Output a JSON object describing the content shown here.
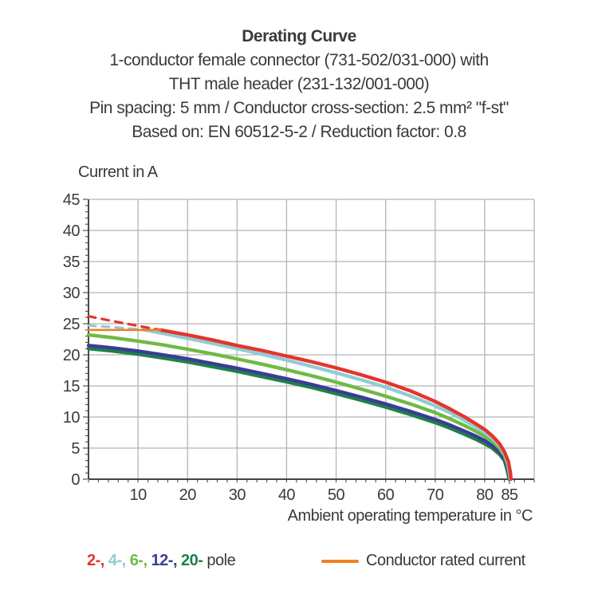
{
  "header": {
    "title": "Derating Curve",
    "subtitle_lines": [
      "1-conductor female connector (731-502/031-000) with",
      "THT male header (231-132/001-000)",
      "Pin spacing: 5 mm / Conductor cross-section: 2.5 mm² \"f-st\"",
      "Based on: EN 60512-5-2 / Reduction factor: 0.8"
    ]
  },
  "chart_data": {
    "type": "line",
    "title": "Derating Curve",
    "ylabel": "Current in A",
    "xlabel": "Ambient operating temperature in °C",
    "xlim": [
      0,
      90
    ],
    "ylim": [
      0,
      45
    ],
    "x_ticks_labeled": [
      10,
      20,
      30,
      40,
      50,
      60,
      70,
      80,
      85
    ],
    "y_ticks_labeled": [
      0,
      5,
      10,
      15,
      20,
      25,
      30,
      35,
      40,
      45
    ],
    "x_minor_tick_step": 2,
    "x_extra_tick": 85,
    "y_minor_tick_step": 1,
    "grid": true,
    "grid_color": "#b4b4b4",
    "axis_color": "#2a2a29",
    "rated_current": {
      "label": "Conductor rated current",
      "value": 24,
      "x_start": 0,
      "x_end": 14.5,
      "color": "#ef8023"
    },
    "series": [
      {
        "name": "20-pole",
        "color": "#1d8148",
        "dashed_points": [],
        "points": [
          [
            0,
            21.0
          ],
          [
            5,
            20.6
          ],
          [
            10,
            20.1
          ],
          [
            15,
            19.5
          ],
          [
            20,
            18.85
          ],
          [
            25,
            18.1
          ],
          [
            30,
            17.35
          ],
          [
            35,
            16.5
          ],
          [
            40,
            15.65
          ],
          [
            45,
            14.75
          ],
          [
            50,
            13.75
          ],
          [
            55,
            12.7
          ],
          [
            60,
            11.6
          ],
          [
            65,
            10.4
          ],
          [
            70,
            9.1
          ],
          [
            73,
            8.2
          ],
          [
            76,
            7.2
          ],
          [
            78,
            6.5
          ],
          [
            80,
            5.7
          ],
          [
            81.5,
            5.0
          ],
          [
            83,
            4.0
          ],
          [
            84,
            3.0
          ],
          [
            84.4,
            1.9
          ],
          [
            84.8,
            0.6
          ],
          [
            84.9,
            0
          ]
        ]
      },
      {
        "name": "12-pole",
        "color": "#3c3c96",
        "dashed_points": [],
        "points": [
          [
            0,
            21.5
          ],
          [
            5,
            21.1
          ],
          [
            10,
            20.6
          ],
          [
            15,
            20.0
          ],
          [
            20,
            19.35
          ],
          [
            25,
            18.6
          ],
          [
            30,
            17.85
          ],
          [
            35,
            17.0
          ],
          [
            40,
            16.15
          ],
          [
            45,
            15.25
          ],
          [
            50,
            14.25
          ],
          [
            55,
            13.2
          ],
          [
            60,
            12.1
          ],
          [
            65,
            10.9
          ],
          [
            70,
            9.6
          ],
          [
            73,
            8.7
          ],
          [
            76,
            7.7
          ],
          [
            78,
            7.0
          ],
          [
            80,
            6.2
          ],
          [
            81.5,
            5.4
          ],
          [
            83,
            4.4
          ],
          [
            84,
            3.3
          ],
          [
            84.5,
            2.1
          ],
          [
            84.9,
            0.7
          ],
          [
            85,
            0
          ]
        ]
      },
      {
        "name": "6-pole",
        "color": "#6fba45",
        "dashed_points": [],
        "points": [
          [
            0,
            23.2
          ],
          [
            5,
            22.75
          ],
          [
            10,
            22.2
          ],
          [
            15,
            21.6
          ],
          [
            20,
            20.9
          ],
          [
            25,
            20.15
          ],
          [
            30,
            19.35
          ],
          [
            35,
            18.5
          ],
          [
            40,
            17.6
          ],
          [
            45,
            16.65
          ],
          [
            50,
            15.6
          ],
          [
            55,
            14.5
          ],
          [
            60,
            13.35
          ],
          [
            65,
            12.1
          ],
          [
            70,
            10.7
          ],
          [
            73,
            9.7
          ],
          [
            76,
            8.6
          ],
          [
            78,
            7.8
          ],
          [
            80,
            6.9
          ],
          [
            81.5,
            6.1
          ],
          [
            83,
            5.0
          ],
          [
            84,
            3.8
          ],
          [
            84.6,
            2.4
          ],
          [
            85,
            0.8
          ],
          [
            85.1,
            0
          ]
        ]
      },
      {
        "name": "4-pole",
        "color": "#8ecdd3",
        "dashed_points": [
          [
            0,
            24.7
          ],
          [
            5,
            24.45
          ],
          [
            8,
            24.25
          ],
          [
            11,
            24.05
          ]
        ],
        "points": [
          [
            11,
            24.05
          ],
          [
            15,
            23.45
          ],
          [
            20,
            22.65
          ],
          [
            25,
            21.85
          ],
          [
            30,
            21.0
          ],
          [
            35,
            20.1
          ],
          [
            40,
            19.15
          ],
          [
            45,
            18.15
          ],
          [
            50,
            17.1
          ],
          [
            55,
            16.0
          ],
          [
            60,
            14.8
          ],
          [
            65,
            13.4
          ],
          [
            70,
            11.8
          ],
          [
            73,
            10.7
          ],
          [
            76,
            9.4
          ],
          [
            78,
            8.5
          ],
          [
            80,
            7.5
          ],
          [
            81.5,
            6.6
          ],
          [
            83,
            5.4
          ],
          [
            84,
            4.1
          ],
          [
            84.7,
            2.6
          ],
          [
            85.1,
            0.9
          ],
          [
            85.2,
            0
          ]
        ]
      },
      {
        "name": "2-pole",
        "color": "#e5342c",
        "dashed_points": [
          [
            0,
            26.2
          ],
          [
            5,
            25.4
          ],
          [
            10,
            24.65
          ],
          [
            14.5,
            24.0
          ]
        ],
        "points": [
          [
            14.5,
            24.0
          ],
          [
            20,
            23.2
          ],
          [
            25,
            22.4
          ],
          [
            30,
            21.5
          ],
          [
            35,
            20.7
          ],
          [
            40,
            19.8
          ],
          [
            45,
            18.9
          ],
          [
            50,
            17.9
          ],
          [
            55,
            16.8
          ],
          [
            60,
            15.6
          ],
          [
            65,
            14.2
          ],
          [
            70,
            12.5
          ],
          [
            73,
            11.3
          ],
          [
            76,
            10.0
          ],
          [
            78,
            9.0
          ],
          [
            80,
            8.0
          ],
          [
            81.5,
            7.0
          ],
          [
            83,
            5.7
          ],
          [
            84,
            4.4
          ],
          [
            84.8,
            2.8
          ],
          [
            85.2,
            1.0
          ],
          [
            85.3,
            0
          ]
        ]
      }
    ],
    "legend_position": "bottom"
  },
  "legend": {
    "pole_items": [
      {
        "label": "2-,",
        "color": "#e5342c"
      },
      {
        "label": "4-,",
        "color": "#8ecdd3"
      },
      {
        "label": "6-,",
        "color": "#6fba45"
      },
      {
        "label": "12-,",
        "color": "#3c3c96"
      },
      {
        "label": "20-",
        "color": "#1d8148"
      }
    ],
    "pole_suffix": "pole",
    "rated_label": "Conductor rated current",
    "rated_color": "#ef8023"
  }
}
